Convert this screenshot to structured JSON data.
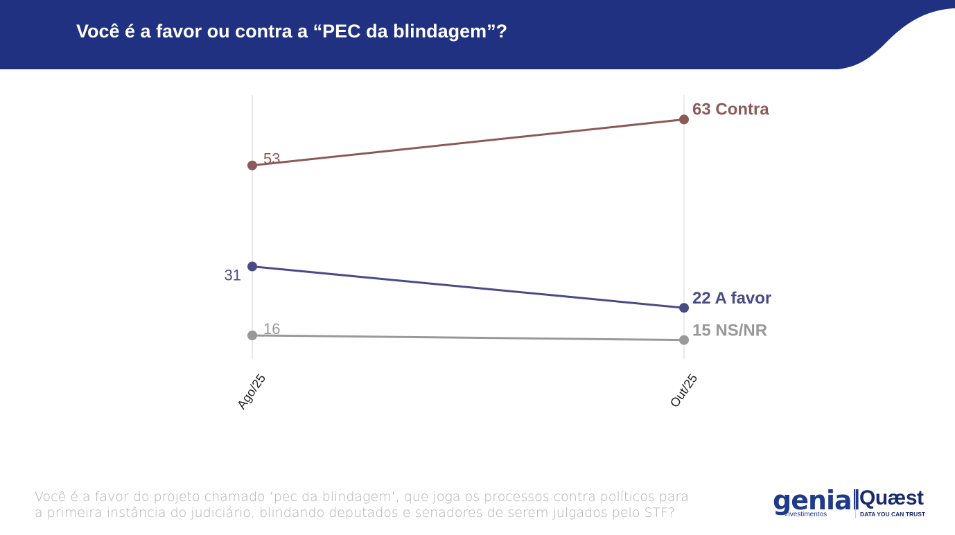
{
  "header": {
    "title": "Você é a favor ou contra a “PEC da blindagem”?",
    "color": "#1f3180"
  },
  "chart_data": {
    "type": "line",
    "categories": [
      "Ago/25",
      "Out/25"
    ],
    "series": [
      {
        "name": "Contra",
        "values": [
          53,
          63
        ],
        "color": "#8b5a58",
        "end_label": "63 Contra",
        "start_label": "53"
      },
      {
        "name": "A favor",
        "values": [
          31,
          22
        ],
        "color": "#4a4a85",
        "end_label": "22 A favor",
        "start_label": "31"
      },
      {
        "name": "NS/NR",
        "values": [
          16,
          15
        ],
        "color": "#999999",
        "end_label": "15 NS/NR",
        "start_label": "16"
      }
    ],
    "title": "",
    "xlabel": "",
    "ylabel": "",
    "grid": "vertical"
  },
  "footnote": {
    "line1": "Você é a favor do projeto chamado ‘pec da blindagem’, que joga os processos contra políticos para",
    "line2": "a primeira instância do judiciário, blindando deputados e senadores de serem julgados pelo STF?"
  },
  "logos": {
    "genial": "genial",
    "genial_sub": "investimentos",
    "quaest": "Quæst",
    "quaest_sub": "DATA YOU CAN TRUST"
  }
}
